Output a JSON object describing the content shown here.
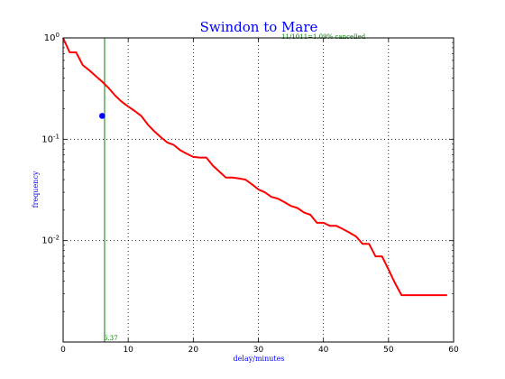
{
  "chart_data": {
    "type": "line",
    "title": "Swindon to Mare",
    "xlabel": "delay/minutes",
    "ylabel": "frequency",
    "x_scale": "linear",
    "y_scale": "log",
    "xlim": [
      0,
      60
    ],
    "ylim": [
      0.001,
      1.0
    ],
    "grid": true,
    "x_ticks": [
      0,
      10,
      20,
      30,
      40,
      50,
      60
    ],
    "x_tick_labels": [
      "0",
      "10",
      "20",
      "30",
      "40",
      "50",
      "60"
    ],
    "y_ticks": [
      {
        "value": 1.0,
        "base": "10",
        "exp": "0"
      },
      {
        "value": 0.1,
        "base": "10",
        "exp": "-1"
      },
      {
        "value": 0.01,
        "base": "10",
        "exp": "-2"
      }
    ],
    "series": [
      {
        "color": "#ff0000",
        "x": [
          0,
          1,
          2,
          3,
          4,
          5,
          6,
          7,
          8,
          9,
          10,
          11,
          12,
          13,
          14,
          15,
          16,
          17,
          18,
          19,
          20,
          21,
          22,
          23,
          24,
          25,
          26,
          27,
          28,
          29,
          30,
          31,
          32,
          33,
          34,
          35,
          36,
          37,
          38,
          39,
          40,
          41,
          42,
          43,
          44,
          45,
          46,
          47,
          48,
          49,
          50,
          51,
          52,
          53,
          54,
          55,
          56,
          57,
          58,
          59
        ],
        "y": [
          1.0,
          0.72,
          0.72,
          0.54,
          0.48,
          0.42,
          0.37,
          0.32,
          0.27,
          0.235,
          0.21,
          0.19,
          0.17,
          0.14,
          0.12,
          0.105,
          0.093,
          0.088,
          0.078,
          0.072,
          0.067,
          0.066,
          0.066,
          0.055,
          0.048,
          0.042,
          0.042,
          0.041,
          0.04,
          0.036,
          0.032,
          0.03,
          0.027,
          0.026,
          0.024,
          0.022,
          0.021,
          0.019,
          0.018,
          0.015,
          0.015,
          0.014,
          0.014,
          0.013,
          0.012,
          0.011,
          0.0093,
          0.0093,
          0.007,
          0.007,
          0.0052,
          0.0038,
          0.0029,
          0.0029,
          0.0029,
          0.0029,
          0.0029,
          0.0029,
          0.0029,
          0.0029
        ]
      }
    ],
    "vline": {
      "x": 6.37,
      "label": "6.37",
      "color": "#008000"
    },
    "marker": {
      "x": 6.0,
      "y": 0.17,
      "color": "#0000ff"
    },
    "annotation": {
      "text": "11/1011=1.09% cancelled",
      "x": 40,
      "y": 0.72,
      "color": "#008000"
    }
  }
}
